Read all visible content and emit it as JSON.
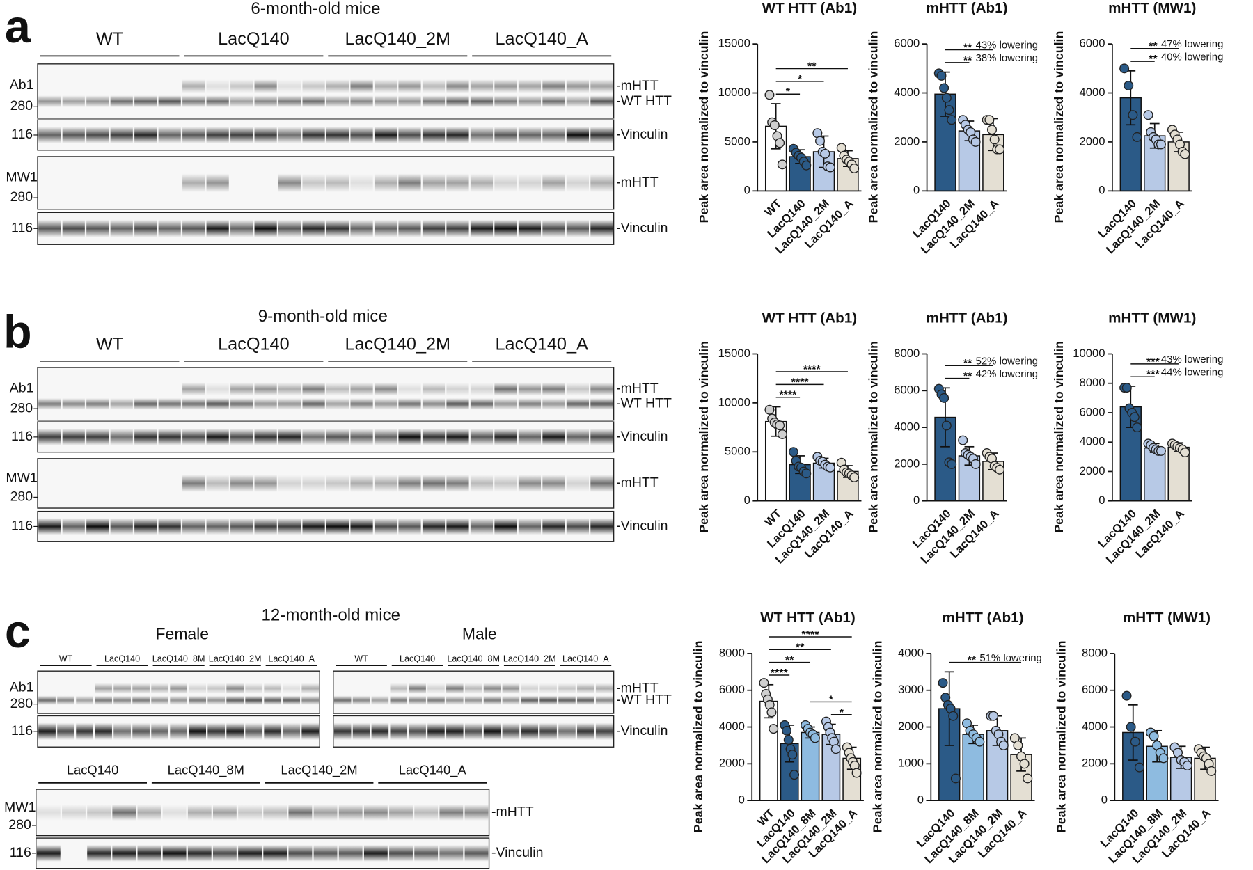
{
  "panels": [
    {
      "letter": "a",
      "title": "6-month-old mice",
      "blots": [
        {
          "groups": [
            "WT",
            "LacQ140",
            "LacQ140_2M",
            "LacQ140_A"
          ],
          "rows": [
            {
              "antibody": "Ab1",
              "marker": "280",
              "bands": [
                "-mHTT",
                "-WT HTT"
              ]
            },
            {
              "marker": "116",
              "bands": [
                "-Vinculin"
              ]
            },
            {
              "antibody": "MW1",
              "marker": "280",
              "bands": [
                "-mHTT"
              ]
            },
            {
              "marker": "116",
              "bands": [
                "-Vinculin"
              ]
            }
          ]
        }
      ]
    },
    {
      "letter": "b",
      "title": "9-month-old mice",
      "blots": [
        {
          "groups": [
            "WT",
            "LacQ140",
            "LacQ140_2M",
            "LacQ140_A"
          ],
          "rows": [
            {
              "antibody": "Ab1",
              "marker": "280",
              "bands": [
                "-mHTT",
                "-WT HTT"
              ]
            },
            {
              "marker": "116",
              "bands": [
                "-Vinculin"
              ]
            },
            {
              "antibody": "MW1",
              "marker": "280",
              "bands": [
                "-mHTT"
              ]
            },
            {
              "marker": "116",
              "bands": [
                "-Vinculin"
              ]
            }
          ]
        }
      ]
    },
    {
      "letter": "c",
      "title": "12-month-old mice",
      "blots": [
        {
          "subtitle": "Female",
          "groups": [
            "WT",
            "LacQ140",
            "LacQ140_8M",
            "LacQ140_2M",
            "LacQ140_A"
          ],
          "rows": [
            {
              "antibody": "Ab1",
              "marker": "280"
            },
            {
              "marker": "116"
            }
          ]
        },
        {
          "subtitle": "Male",
          "groups": [
            "WT",
            "LacQ140",
            "LacQ140_8M",
            "LacQ140_2M",
            "LacQ140_A"
          ],
          "rows": [
            {
              "bands": [
                "-mHTT",
                "-WT HTT"
              ]
            },
            {
              "bands": [
                "-Vinculin"
              ]
            }
          ]
        },
        {
          "groups": [
            "LacQ140",
            "LacQ140_8M",
            "LacQ140_2M",
            "LacQ140_A"
          ],
          "rows": [
            {
              "antibody": "MW1",
              "marker": "280",
              "bands": [
                "-mHTT"
              ]
            },
            {
              "marker": "116",
              "bands": [
                "-Vinculin"
              ]
            }
          ]
        }
      ]
    }
  ],
  "chart_data": [
    {
      "type": "bar",
      "title": "WT HTT (Ab1)",
      "y_label": "Peak area normalized to vinculin",
      "categories": [
        "WT",
        "LacQ140",
        "LacQ140_2M",
        "LacQ140_A"
      ],
      "colors": [
        "#ffffff",
        "#2b5a87",
        "#b7c9e6",
        "#e4dfd3"
      ],
      "values": [
        6600,
        3500,
        4000,
        3300
      ],
      "errors": [
        2300,
        700,
        1600,
        800
      ],
      "points": [
        [
          9800,
          7000,
          6700,
          5600,
          4900,
          2700
        ],
        [
          4300,
          3900,
          3600,
          3400,
          3000,
          2600
        ],
        [
          5900,
          5100,
          4000,
          3800,
          2500,
          2400
        ],
        [
          4400,
          3600,
          3200,
          3000,
          2700,
          2300
        ]
      ],
      "ylim": [
        0,
        15000
      ],
      "yticks": [
        0,
        5000,
        10000,
        15000
      ],
      "significance": [
        {
          "from": 0,
          "to": 1,
          "label": "*"
        },
        {
          "from": 0,
          "to": 2,
          "label": "*"
        },
        {
          "from": 0,
          "to": 3,
          "label": "**"
        }
      ]
    },
    {
      "type": "bar",
      "title": "mHTT (Ab1)",
      "y_label": "Peak area normalized to vinculin",
      "categories": [
        "LacQ140",
        "LacQ140_2M",
        "LacQ140_A"
      ],
      "colors": [
        "#2b5a87",
        "#b7c9e6",
        "#e4dfd3"
      ],
      "values": [
        3950,
        2450,
        2300
      ],
      "errors": [
        900,
        400,
        650
      ],
      "points": [
        [
          4800,
          4700,
          4200,
          3800,
          3300,
          2900
        ],
        [
          2900,
          2700,
          2500,
          2400,
          2100,
          2000
        ],
        [
          2900,
          2900,
          2500,
          2100,
          1700,
          1700
        ]
      ],
      "ylim": [
        0,
        6000
      ],
      "yticks": [
        0,
        2000,
        4000,
        6000
      ],
      "significance": [
        {
          "from": 0,
          "to": 1,
          "label": "**",
          "note": "38% lowering"
        },
        {
          "from": 0,
          "to": 2,
          "label": "**",
          "note": "43% lowering"
        }
      ]
    },
    {
      "type": "bar",
      "title": "mHTT (MW1)",
      "y_label": "Peak area normalized to vinculin",
      "categories": [
        "LacQ140",
        "LacQ140_2M",
        "LacQ140_A"
      ],
      "colors": [
        "#2b5a87",
        "#b7c9e6",
        "#e4dfd3"
      ],
      "values": [
        3800,
        2250,
        2000
      ],
      "errors": [
        1100,
        500,
        400
      ],
      "points": [
        [
          5000,
          4300,
          3100,
          2200
        ],
        [
          3100,
          2400,
          2200,
          2100,
          1900,
          1900
        ],
        [
          2500,
          2300,
          2100,
          1900,
          1600,
          1500
        ]
      ],
      "ylim": [
        0,
        6000
      ],
      "yticks": [
        0,
        2000,
        4000,
        6000
      ],
      "significance": [
        {
          "from": 0,
          "to": 1,
          "label": "**",
          "note": "40% lowering"
        },
        {
          "from": 0,
          "to": 2,
          "label": "**",
          "note": "47% lowering"
        }
      ]
    },
    {
      "type": "bar",
      "title": "WT HTT (Ab1)",
      "y_label": "Peak area normalized to vinculin",
      "categories": [
        "WT",
        "LacQ140",
        "LacQ140_2M",
        "LacQ140_A"
      ],
      "colors": [
        "#ffffff",
        "#2b5a87",
        "#b7c9e6",
        "#e4dfd3"
      ],
      "values": [
        8100,
        3700,
        3850,
        3000
      ],
      "errors": [
        1500,
        900,
        500,
        600
      ],
      "points": [
        [
          9300,
          8400,
          8000,
          7800,
          7700,
          6800
        ],
        [
          5000,
          4100,
          3500,
          3400,
          3000,
          2800
        ],
        [
          4500,
          4100,
          4000,
          3700,
          3500,
          3400
        ],
        [
          3900,
          3200,
          2900,
          2800,
          2600,
          2400
        ]
      ],
      "ylim": [
        0,
        15000
      ],
      "yticks": [
        0,
        5000,
        10000,
        15000
      ],
      "significance": [
        {
          "from": 0,
          "to": 1,
          "label": "****"
        },
        {
          "from": 0,
          "to": 2,
          "label": "****"
        },
        {
          "from": 0,
          "to": 3,
          "label": "****"
        }
      ]
    },
    {
      "type": "bar",
      "title": "mHTT (Ab1)",
      "y_label": "Peak area normalized to vinculin",
      "categories": [
        "LacQ140",
        "LacQ140_2M",
        "LacQ140_A"
      ],
      "colors": [
        "#2b5a87",
        "#b7c9e6",
        "#e4dfd3"
      ],
      "values": [
        4550,
        2450,
        2150
      ],
      "errors": [
        1600,
        500,
        450
      ],
      "points": [
        [
          6100,
          5800,
          5600,
          4100,
          2100,
          2000
        ],
        [
          3300,
          2600,
          2500,
          2400,
          2300,
          2000
        ],
        [
          2600,
          2400,
          2300,
          1900,
          1800,
          1700
        ]
      ],
      "ylim": [
        0,
        8000
      ],
      "yticks": [
        0,
        2000,
        4000,
        6000,
        8000
      ],
      "significance": [
        {
          "from": 0,
          "to": 1,
          "label": "**",
          "note": "42% lowering"
        },
        {
          "from": 0,
          "to": 2,
          "label": "**",
          "note": "52% lowering"
        }
      ]
    },
    {
      "type": "bar",
      "title": "mHTT (MW1)",
      "y_label": "Peak area normalized to vinculin",
      "categories": [
        "LacQ140",
        "LacQ140_2M",
        "LacQ140_A"
      ],
      "colors": [
        "#2b5a87",
        "#b7c9e6",
        "#e4dfd3"
      ],
      "values": [
        6400,
        3600,
        3650
      ],
      "errors": [
        1400,
        300,
        300
      ],
      "points": [
        [
          7700,
          7700,
          6300,
          6000,
          5700,
          5000
        ],
        [
          3900,
          3800,
          3600,
          3500,
          3400,
          3400
        ],
        [
          3900,
          3800,
          3700,
          3600,
          3500,
          3300
        ]
      ],
      "ylim": [
        0,
        10000
      ],
      "yticks": [
        0,
        2000,
        4000,
        6000,
        8000,
        10000
      ],
      "significance": [
        {
          "from": 0,
          "to": 1,
          "label": "***",
          "note": "44% lowering"
        },
        {
          "from": 0,
          "to": 2,
          "label": "***",
          "note": "43% lowering"
        }
      ]
    },
    {
      "type": "bar",
      "title": "WT HTT (Ab1)",
      "y_label": "Peak area normalized to vinculin",
      "categories": [
        "WT",
        "LacQ140",
        "LacQ140_8M",
        "LacQ140_2M",
        "LacQ140_A"
      ],
      "colors": [
        "#ffffff",
        "#2b5a87",
        "#8ebbe0",
        "#b7c9e6",
        "#e4dfd3"
      ],
      "values": [
        5400,
        3100,
        3700,
        3600,
        2300
      ],
      "errors": [
        900,
        1000,
        300,
        550,
        600
      ],
      "points": [
        [
          6400,
          5800,
          5500,
          5200,
          4800,
          3900
        ],
        [
          4100,
          3800,
          3300,
          2800,
          2500,
          1400
        ],
        [
          4100,
          3900,
          3700,
          3600,
          3400
        ],
        [
          4300,
          4000,
          3700,
          3400,
          3200,
          2800
        ],
        [
          2900,
          2600,
          2300,
          2100,
          1900,
          1500
        ]
      ],
      "ylim": [
        0,
        8000
      ],
      "yticks": [
        0,
        2000,
        4000,
        6000,
        8000
      ],
      "significance": [
        {
          "from": 3,
          "to": 4,
          "label": "*"
        },
        {
          "from": 2,
          "to": 4,
          "label": "*"
        },
        {
          "from": 0,
          "to": 1,
          "label": "****"
        },
        {
          "from": 0,
          "to": 2,
          "label": "**"
        },
        {
          "from": 0,
          "to": 3,
          "label": "**"
        },
        {
          "from": 0,
          "to": 4,
          "label": "****"
        }
      ]
    },
    {
      "type": "bar",
      "title": "mHTT (Ab1)",
      "y_label": "Peak area normalized to vinculin",
      "categories": [
        "LacQ140",
        "LacQ140_8M",
        "LacQ140_2M",
        "LacQ140_A"
      ],
      "colors": [
        "#2b5a87",
        "#8ebbe0",
        "#b7c9e6",
        "#e4dfd3"
      ],
      "values": [
        2500,
        1800,
        1900,
        1250
      ],
      "errors": [
        1000,
        250,
        400,
        450
      ],
      "points": [
        [
          3200,
          2800,
          2600,
          2500,
          2300,
          600
        ],
        [
          2100,
          1900,
          1800,
          1700,
          1600
        ],
        [
          2300,
          2300,
          1900,
          1800,
          1600,
          1500
        ],
        [
          1700,
          1500,
          1200,
          1000,
          600
        ]
      ],
      "ylim": [
        0,
        4000
      ],
      "yticks": [
        0,
        1000,
        2000,
        3000,
        4000
      ],
      "significance": [
        {
          "from": 0,
          "to": 3,
          "label": "**",
          "note": "51% lowering"
        }
      ]
    },
    {
      "type": "bar",
      "title": "mHTT (MW1)",
      "y_label": "Peak area normalized to vinculin",
      "categories": [
        "LacQ140",
        "LacQ140_8M",
        "LacQ140_2M",
        "LacQ140_A"
      ],
      "colors": [
        "#2b5a87",
        "#8ebbe0",
        "#b7c9e6",
        "#e4dfd3"
      ],
      "values": [
        3700,
        2950,
        2350,
        2300
      ],
      "errors": [
        1500,
        850,
        600,
        600
      ],
      "points": [
        [
          5700,
          4000,
          3200,
          1800
        ],
        [
          3700,
          3500,
          3000,
          2600,
          2300
        ],
        [
          2900,
          2600,
          2200,
          2100,
          1900
        ],
        [
          2800,
          2600,
          2400,
          2300,
          2000,
          1600
        ]
      ],
      "ylim": [
        0,
        8000
      ],
      "yticks": [
        0,
        2000,
        4000,
        6000,
        8000
      ],
      "significance": []
    }
  ]
}
